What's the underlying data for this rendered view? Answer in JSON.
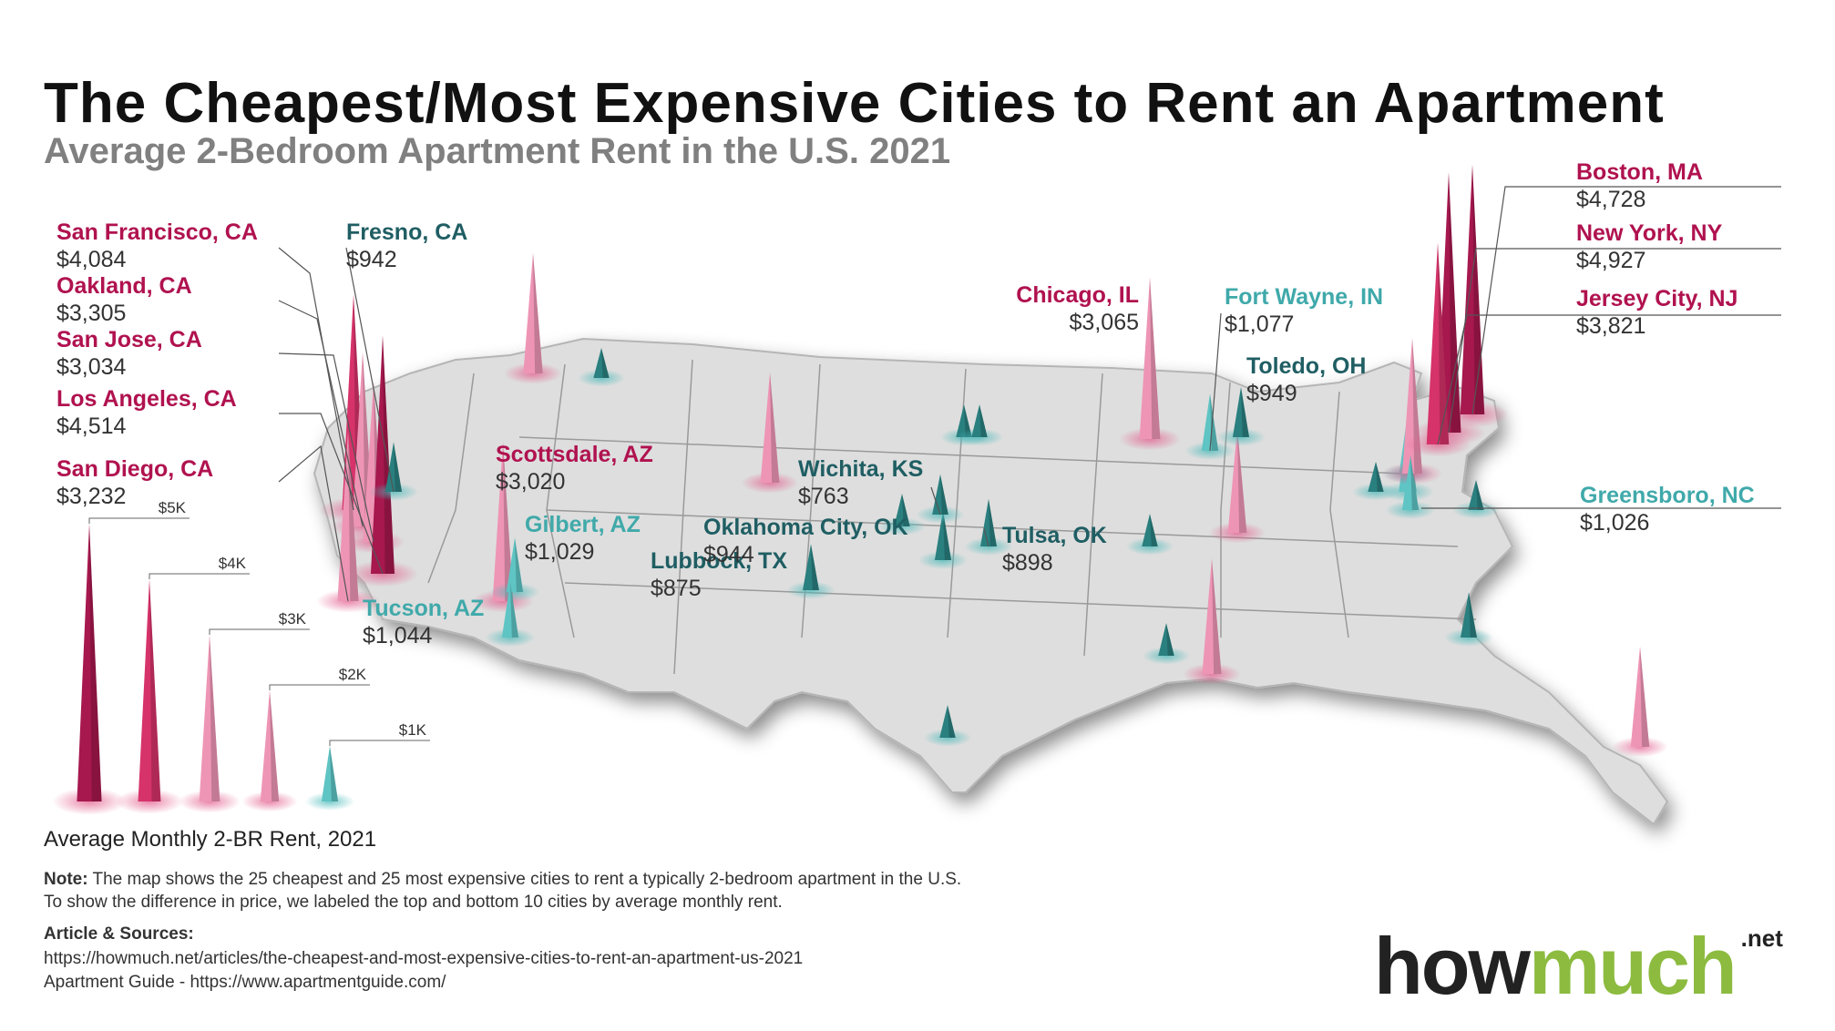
{
  "header": {
    "title": "The Cheapest/Most Expensive Cities to Rent an Apartment",
    "subtitle": "Average 2-Bedroom Apartment Rent in the U.S. 2021"
  },
  "colors": {
    "expensive_dark": "#a6184e",
    "expensive_mid": "#d6336a",
    "expensive_light": "#ee95b5",
    "cheap_light": "#5fc4c4",
    "cheap_dark": "#2a7f7f",
    "label_expensive": "#b0124f",
    "label_cheap_light": "#40a9aa",
    "label_cheap_dark": "#1f5e63",
    "map_fill": "#dedede",
    "map_border": "#9a9a9a",
    "logo_green": "#8cbb3f"
  },
  "map_data": {
    "type": "spike-map",
    "region": "Contiguous United States",
    "labeled_cities": [
      {
        "name": "San Francisco, CA",
        "rent": "$4,084",
        "value": 4084,
        "group": "expensive"
      },
      {
        "name": "Oakland, CA",
        "rent": "$3,305",
        "value": 3305,
        "group": "expensive"
      },
      {
        "name": "San Jose, CA",
        "rent": "$3,034",
        "value": 3034,
        "group": "expensive"
      },
      {
        "name": "Los Angeles, CA",
        "rent": "$4,514",
        "value": 4514,
        "group": "expensive"
      },
      {
        "name": "San Diego, CA",
        "rent": "$3,232",
        "value": 3232,
        "group": "expensive"
      },
      {
        "name": "Fresno, CA",
        "rent": "$942",
        "value": 942,
        "group": "cheap"
      },
      {
        "name": "Scottsdale, AZ",
        "rent": "$3,020",
        "value": 3020,
        "group": "expensive"
      },
      {
        "name": "Gilbert, AZ",
        "rent": "$1,029",
        "value": 1029,
        "group": "cheap"
      },
      {
        "name": "Tucson, AZ",
        "rent": "$1,044",
        "value": 1044,
        "group": "cheap"
      },
      {
        "name": "Lubbock, TX",
        "rent": "$875",
        "value": 875,
        "group": "cheap"
      },
      {
        "name": "Oklahoma City, OK",
        "rent": "$944",
        "value": 944,
        "group": "cheap"
      },
      {
        "name": "Wichita, KS",
        "rent": "$763",
        "value": 763,
        "group": "cheap"
      },
      {
        "name": "Tulsa, OK",
        "rent": "$898",
        "value": 898,
        "group": "cheap"
      },
      {
        "name": "Chicago, IL",
        "rent": "$3,065",
        "value": 3065,
        "group": "expensive"
      },
      {
        "name": "Fort Wayne, IN",
        "rent": "$1,077",
        "value": 1077,
        "group": "cheap"
      },
      {
        "name": "Toledo, OH",
        "rent": "$949",
        "value": 949,
        "group": "cheap"
      },
      {
        "name": "Boston, MA",
        "rent": "$4,728",
        "value": 4728,
        "group": "expensive"
      },
      {
        "name": "New York, NY",
        "rent": "$4,927",
        "value": 4927,
        "group": "expensive"
      },
      {
        "name": "Jersey City, NJ",
        "rent": "$3,821",
        "value": 3821,
        "group": "expensive"
      },
      {
        "name": "Greensboro, NC",
        "rent": "$1,026",
        "value": 1026,
        "group": "cheap"
      }
    ]
  },
  "legend": {
    "scale": [
      {
        "label": "$5K",
        "value": 5000
      },
      {
        "label": "$4K",
        "value": 4000
      },
      {
        "label": "$3K",
        "value": 3000
      },
      {
        "label": "$2K",
        "value": 2000
      },
      {
        "label": "$1K",
        "value": 1000
      }
    ],
    "caption": "Average Monthly 2-BR Rent, 2021"
  },
  "footer": {
    "note_label": "Note:",
    "note_line1": "The map shows the 25 cheapest and 25 most expensive cities to rent a typically 2-bedroom apartment in the U.S.",
    "note_line2": "To show the difference in price, we labeled the top and bottom 10 cities by average monthly rent.",
    "sources_heading": "Article & Sources:",
    "source_1": "https://howmuch.net/articles/the-cheapest-and-most-expensive-cities-to-rent-an-apartment-us-2021",
    "source_2": "Apartment Guide - https://www.apartmentguide.com/"
  },
  "logo": {
    "how": "how",
    "much": "much",
    "net": ".net"
  }
}
